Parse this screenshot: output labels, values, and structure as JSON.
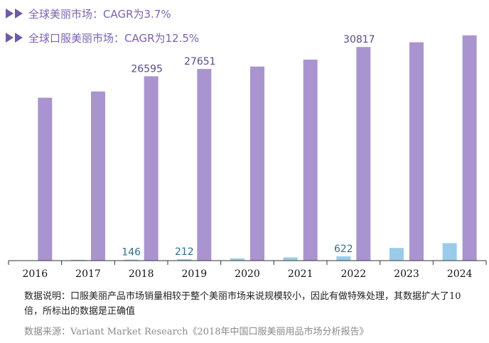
{
  "legend": [
    {
      "label": "全球美丽市场：CAGR为3.7%",
      "color": "#a994d0"
    },
    {
      "label": "全球口服美丽市场：CAGR为12.5%",
      "color": "#9bcbea"
    }
  ],
  "chart_data": {
    "type": "bar",
    "categories": [
      "2016",
      "2017",
      "2018",
      "2019",
      "2020",
      "2021",
      "2022",
      "2023",
      "2024"
    ],
    "series": [
      {
        "name": "全球口服美丽市场：CAGR为12.5%",
        "color": "#9bcbea",
        "values": [
          null,
          120,
          146,
          212,
          320,
          465,
          622,
          1830,
          2520
        ],
        "labels": [
          "",
          "",
          "146",
          "212",
          "",
          "",
          "622",
          "",
          ""
        ]
      },
      {
        "name": "全球美丽市场：CAGR为3.7%",
        "color": "#a994d0",
        "values": [
          23500,
          24400,
          26595,
          27651,
          28000,
          29000,
          30817,
          31500,
          32500
        ],
        "labels": [
          "",
          "",
          "26595",
          "27651",
          "",
          "",
          "30817",
          "",
          ""
        ]
      }
    ],
    "ylim": [
      0,
      33500
    ],
    "grid": false,
    "legend_position": "top-left"
  },
  "notes": {
    "description": "数据说明：口服美丽产品市场销量相较于整个美丽市场来说规模较小，因此有做特殊处理，其数据扩大了10倍，所标出的数据是正确值",
    "source": "数据来源：Variant Market Research《2018年中国口服美丽用品市场分析报告》"
  }
}
